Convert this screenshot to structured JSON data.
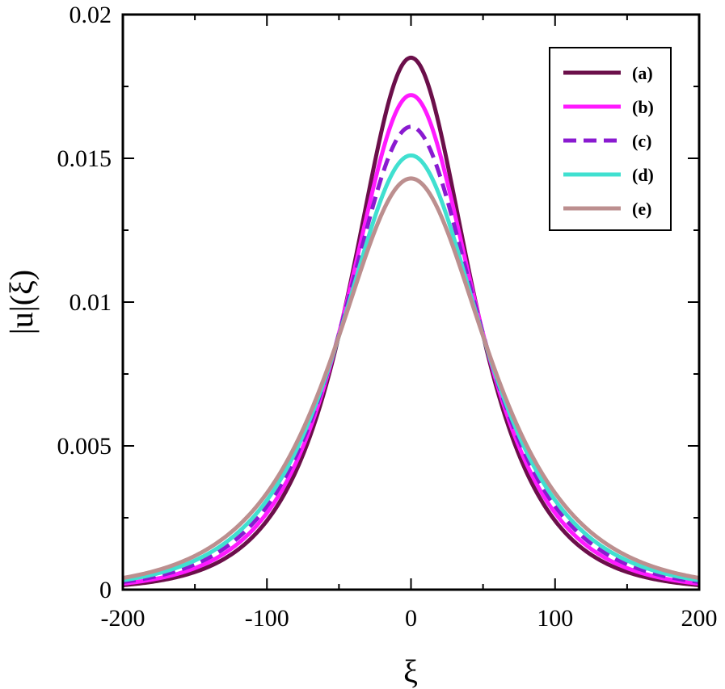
{
  "chart_data": {
    "type": "line",
    "title": "",
    "xlabel": "ξ",
    "ylabel": "|u|(ξ)",
    "xlim": [
      -200,
      200
    ],
    "ylim": [
      0,
      0.02
    ],
    "xticks": [
      -200,
      -100,
      0,
      100,
      200
    ],
    "xtick_labels": [
      "-200",
      "-100",
      "0",
      "100",
      "200"
    ],
    "yticks": [
      0,
      0.005,
      0.01,
      0.015,
      0.02
    ],
    "ytick_labels": [
      "0",
      "0.005",
      "0.01",
      "0.015",
      "0.02"
    ],
    "grid": false,
    "legend_position": "top-right",
    "series": [
      {
        "name": "(a)",
        "color": "#6b0f4a",
        "dash": "solid",
        "peak": 0.0185,
        "width": 36.6
      },
      {
        "name": "(b)",
        "color": "#ff1aff",
        "dash": "solid",
        "peak": 0.0172,
        "width": 39.2
      },
      {
        "name": "(c)",
        "color": "#8a1ad0",
        "dash": "dashed",
        "peak": 0.0161,
        "width": 41.7
      },
      {
        "name": "(d)",
        "color": "#40e0d0",
        "dash": "solid",
        "peak": 0.0151,
        "width": 44.2
      },
      {
        "name": "(e)",
        "color": "#bc8f8f",
        "dash": "solid",
        "peak": 0.0143,
        "width": 47.0
      }
    ],
    "curve_formula": "peak * sech(ξ / width)"
  }
}
